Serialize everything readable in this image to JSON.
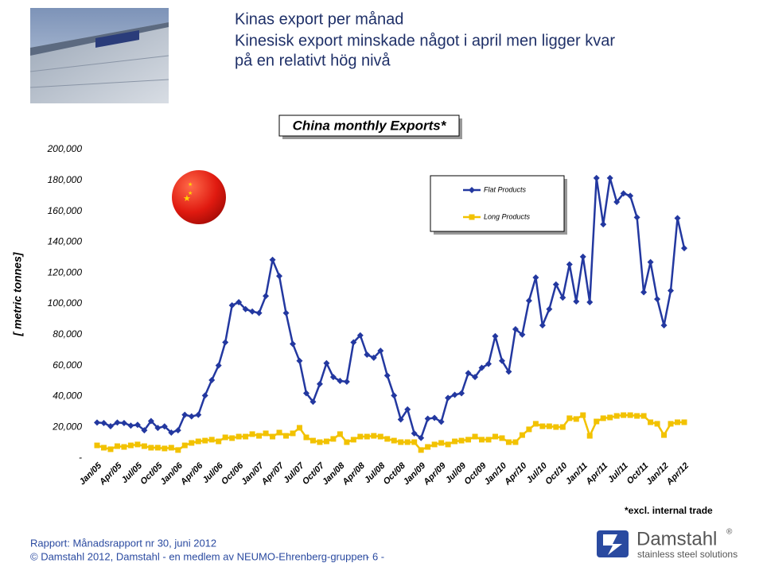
{
  "header": {
    "title_lines": [
      "Kinas export per månad",
      "Kinesisk export minskade något i april men ligger kvar",
      "på en relativt hög nivå"
    ]
  },
  "chart_data": {
    "type": "line",
    "title": "China monthly Exports*",
    "y_label": "[ metric tonnes]",
    "categories": [
      "Jan/05",
      null,
      null,
      "Apr/05",
      null,
      null,
      "Jul/05",
      null,
      null,
      "Oct/05",
      null,
      null,
      "Jan/06",
      null,
      null,
      "Apr/06",
      null,
      null,
      "Jul/06",
      null,
      null,
      "Oct/06",
      null,
      null,
      "Jan/07",
      null,
      null,
      "Apr/07",
      null,
      null,
      "Jul/07",
      null,
      null,
      "Oct/07",
      null,
      null,
      "Jan/08",
      null,
      null,
      "Apr/08",
      null,
      null,
      "Jul/08",
      null,
      null,
      "Oct/08",
      null,
      null,
      "Jan/09",
      null,
      null,
      "Apr/09",
      null,
      null,
      "Jul/09",
      null,
      null,
      "Oct/09",
      null,
      null,
      "Jan/10",
      null,
      null,
      "Apr/10",
      null,
      null,
      "Jul/10",
      null,
      null,
      "Oct/10",
      null,
      null,
      "Jan/11",
      null,
      null,
      "Apr/11",
      null,
      null,
      "Jul/11",
      null,
      null,
      "Oct/11",
      null,
      null,
      "Jan/12",
      null,
      null,
      "Apr/12"
    ],
    "series": [
      {
        "name": "Flat Products",
        "color": "#2338a0",
        "marker": "diamond",
        "values": [
          23000,
          22700,
          20600,
          23000,
          22700,
          21000,
          21500,
          18000,
          24000,
          19500,
          20500,
          16500,
          18000,
          28000,
          27000,
          28000,
          40500,
          50500,
          60000,
          75000,
          99000,
          101000,
          96500,
          95000,
          94000,
          105000,
          128500,
          118000,
          94000,
          74000,
          63000,
          42000,
          36500,
          48000,
          61500,
          52500,
          50000,
          49500,
          75000,
          79500,
          67000,
          65000,
          69500,
          53500,
          40500,
          25000,
          31500,
          16000,
          13000,
          25500,
          26000,
          23500,
          39000,
          41000,
          42000,
          55000,
          52500,
          58500,
          61000,
          79000,
          63000,
          56000,
          83500,
          80000,
          102000,
          117000,
          86000,
          96500,
          112500,
          104000,
          125500,
          101500,
          130500,
          101000,
          181500,
          151500,
          181500,
          166000,
          171500,
          170000,
          156000,
          107500,
          127000,
          103000,
          86000,
          108500,
          155500,
          136000
        ]
      },
      {
        "name": "Long Products",
        "color": "#f2c200",
        "marker": "square",
        "values": [
          8200,
          6700,
          5700,
          7700,
          7200,
          8200,
          8800,
          7700,
          6700,
          6700,
          6200,
          6700,
          5200,
          8200,
          9800,
          10800,
          11300,
          11900,
          10800,
          13400,
          12900,
          13900,
          13900,
          15500,
          14400,
          16000,
          13900,
          16500,
          14400,
          16000,
          19600,
          13400,
          11300,
          10300,
          10800,
          12400,
          15500,
          10300,
          11900,
          13900,
          13900,
          14400,
          13900,
          12400,
          11300,
          10300,
          10300,
          10300,
          5200,
          7200,
          8800,
          9800,
          8800,
          10800,
          11300,
          11900,
          13900,
          11900,
          11900,
          13900,
          12900,
          10300,
          10300,
          14900,
          18600,
          22200,
          20600,
          20600,
          20100,
          20100,
          25800,
          25300,
          27800,
          14400,
          23700,
          25800,
          26300,
          27300,
          27800,
          27800,
          27300,
          27300,
          23200,
          22200,
          14900,
          22200,
          23200,
          23200
        ]
      }
    ],
    "ylim": [
      0,
      200000
    ],
    "yticks": [
      {
        "value": 0,
        "label": "-"
      },
      {
        "value": 20000,
        "label": "20,000"
      },
      {
        "value": 40000,
        "label": "40,000"
      },
      {
        "value": 60000,
        "label": "60,000"
      },
      {
        "value": 80000,
        "label": "80,000"
      },
      {
        "value": 100000,
        "label": "100,000"
      },
      {
        "value": 120000,
        "label": "120,000"
      },
      {
        "value": 140000,
        "label": "140,000"
      },
      {
        "value": 160000,
        "label": "160,000"
      },
      {
        "value": 180000,
        "label": "180,000"
      },
      {
        "value": 200000,
        "label": "200,000"
      }
    ],
    "grid": false,
    "legend": "top-right",
    "footnote": "*excl. internal trade"
  },
  "footer": {
    "report": "Rapport: Månadsrapport nr 30, juni 2012",
    "copyright": "© Damstahl 2012, Damstahl - en medlem av NEUMO-Ehrenberg-gruppen",
    "page": "- 6 -"
  },
  "logo": {
    "name": "Damstahl",
    "registered": "®",
    "tagline": "stainless steel solutions"
  }
}
